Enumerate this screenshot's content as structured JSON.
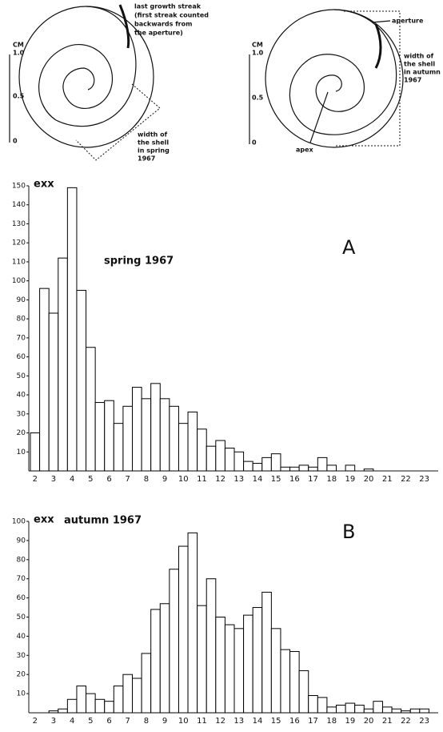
{
  "diagrams": {
    "left": {
      "unit": "CM",
      "scale": [
        "1.0",
        "0.5",
        "0"
      ],
      "streak_note": [
        "last growth streak",
        "(first streak counted",
        "backwards from",
        "the aperture)"
      ],
      "width_note": [
        "width of",
        "the shell",
        "in spring",
        "1967"
      ]
    },
    "right": {
      "unit": "CM",
      "scale": [
        "1.0",
        "0.5",
        "0"
      ],
      "aperture": "aperture",
      "apex": "apex",
      "width_note": [
        "width of",
        "the shell",
        "in autumn",
        "1967"
      ]
    }
  },
  "chart_data": [
    {
      "type": "bar",
      "title": "spring 1967",
      "panel": "A",
      "y_label": "exx",
      "color": "#ffffff",
      "edge_color": "#000000",
      "categories": [
        "2",
        null,
        "3",
        null,
        "4",
        null,
        "5",
        null,
        "6",
        null,
        "7",
        null,
        "8",
        null,
        "9",
        null,
        "10",
        null,
        "11",
        null,
        "12",
        null,
        "13",
        null,
        "14",
        null,
        "15",
        null,
        "16",
        null,
        "17",
        null,
        "18",
        null,
        "19",
        null,
        "20",
        null,
        "21",
        null,
        "22",
        null,
        "23",
        null
      ],
      "values": [
        20,
        96,
        83,
        112,
        149,
        95,
        65,
        36,
        37,
        25,
        34,
        44,
        38,
        46,
        38,
        34,
        25,
        31,
        22,
        13,
        16,
        12,
        10,
        5,
        4,
        7,
        9,
        2,
        2,
        3,
        2,
        7,
        3,
        0,
        3,
        0,
        1,
        0,
        0,
        0,
        0,
        0,
        0,
        0
      ],
      "ylim": [
        0,
        150
      ],
      "yticks": [
        10,
        20,
        30,
        40,
        50,
        60,
        70,
        80,
        90,
        100,
        110,
        120,
        130,
        140,
        150
      ]
    },
    {
      "type": "bar",
      "title": "autumn 1967",
      "panel": "B",
      "y_label": "exx",
      "color": "#ffffff",
      "edge_color": "#000000",
      "categories": [
        "2",
        null,
        "3",
        null,
        "4",
        null,
        "5",
        null,
        "6",
        null,
        "7",
        null,
        "8",
        null,
        "9",
        null,
        "10",
        null,
        "11",
        null,
        "12",
        null,
        "13",
        null,
        "14",
        null,
        "15",
        null,
        "16",
        null,
        "17",
        null,
        "18",
        null,
        "19",
        null,
        "20",
        null,
        "21",
        null,
        "22",
        null,
        "23",
        null
      ],
      "values": [
        0,
        0,
        1,
        2,
        7,
        14,
        10,
        7,
        6,
        14,
        20,
        18,
        31,
        54,
        57,
        75,
        87,
        94,
        56,
        70,
        50,
        46,
        44,
        51,
        55,
        63,
        44,
        33,
        32,
        22,
        9,
        8,
        3,
        4,
        5,
        4,
        2,
        6,
        3,
        2,
        1,
        2,
        2,
        0
      ],
      "ylim": [
        0,
        100
      ],
      "yticks": [
        10,
        20,
        30,
        40,
        50,
        60,
        70,
        80,
        90,
        100
      ]
    }
  ]
}
